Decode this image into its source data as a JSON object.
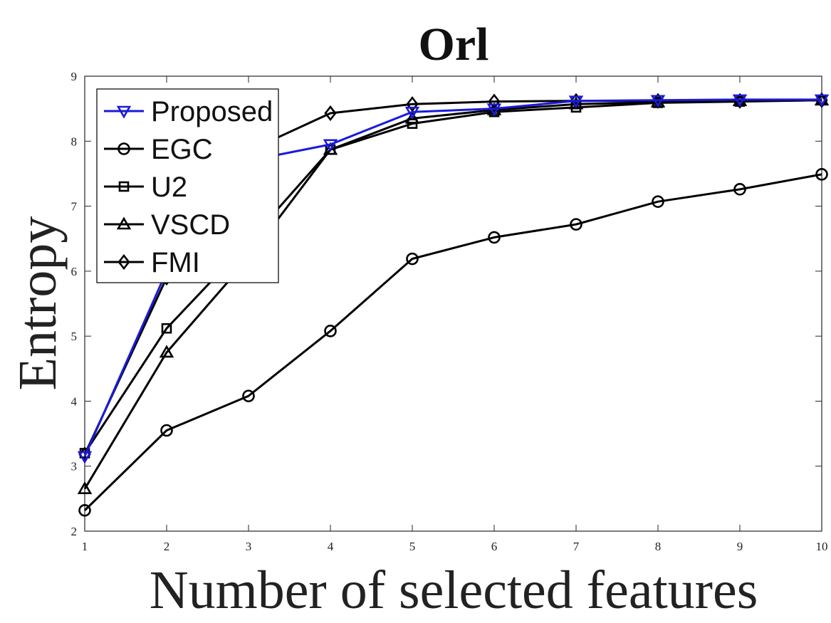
{
  "chart_data": {
    "type": "line",
    "title": "Orl",
    "xlabel": "Number of selected features",
    "ylabel": "Entropy",
    "x": [
      1,
      2,
      3,
      4,
      5,
      6,
      7,
      8,
      9,
      10
    ],
    "xlim": [
      1,
      10
    ],
    "ylim": [
      2,
      9
    ],
    "xticks": [
      "1",
      "2",
      "3",
      "4",
      "5",
      "6",
      "7",
      "8",
      "9",
      "10"
    ],
    "yticks": [
      "2",
      "3",
      "4",
      "5",
      "6",
      "7",
      "8",
      "9"
    ],
    "grid": false,
    "legend_position": "top-left",
    "series": [
      {
        "name": "Proposed",
        "marker": "triangle-down",
        "color": "#1a1adb",
        "values": [
          3.15,
          6.0,
          7.7,
          7.95,
          8.45,
          8.5,
          8.62,
          8.63,
          8.64,
          8.64
        ]
      },
      {
        "name": "EGC",
        "marker": "circle",
        "color": "#000000",
        "values": [
          2.32,
          3.55,
          4.08,
          5.08,
          6.19,
          6.52,
          6.72,
          7.07,
          7.26,
          7.49
        ]
      },
      {
        "name": "U2",
        "marker": "square",
        "color": "#000000",
        "values": [
          3.2,
          5.12,
          6.45,
          7.87,
          8.27,
          8.45,
          8.52,
          8.59,
          8.61,
          8.63
        ]
      },
      {
        "name": "VSCD",
        "marker": "triangle-up",
        "color": "#000000",
        "values": [
          2.65,
          4.75,
          6.2,
          7.87,
          8.35,
          8.48,
          8.57,
          8.6,
          8.62,
          8.63
        ]
      },
      {
        "name": "FMI",
        "marker": "diamond",
        "color": "#000000",
        "values": [
          3.18,
          5.9,
          7.85,
          8.43,
          8.57,
          8.61,
          8.62,
          8.62,
          8.62,
          8.63
        ]
      }
    ]
  }
}
